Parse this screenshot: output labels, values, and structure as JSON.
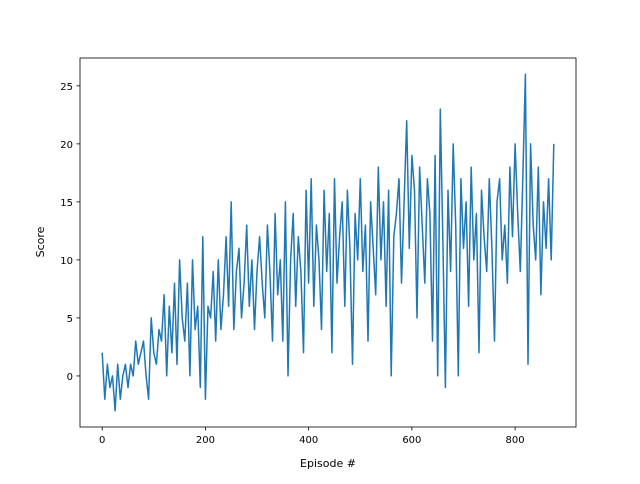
{
  "chart_data": {
    "type": "line",
    "title": "",
    "xlabel": "Episode #",
    "ylabel": "Score",
    "xlim": [
      -43,
      918
    ],
    "ylim": [
      -4.4,
      27.4
    ],
    "xticks": [
      0,
      200,
      400,
      600,
      800
    ],
    "yticks": [
      0,
      5,
      10,
      15,
      20,
      25
    ],
    "grid": false,
    "color": "#1f77b4",
    "note_sampling": "values approximated, sampled every 5 episodes",
    "series": [
      {
        "x_start": 0,
        "x_step": 5,
        "values": [
          2,
          -2,
          1,
          -1,
          0,
          -3,
          1,
          -2,
          0,
          1,
          -1,
          1,
          0,
          3,
          1,
          2,
          3,
          0,
          -2,
          5,
          2,
          1,
          4,
          3,
          7,
          0,
          6,
          2,
          8,
          1,
          10,
          5,
          3,
          8,
          0,
          10,
          4,
          6,
          -1,
          12,
          -2,
          6,
          5,
          9,
          3,
          10,
          4,
          7,
          12,
          6,
          15,
          4,
          9,
          11,
          5,
          8,
          13,
          6,
          10,
          4,
          9,
          12,
          8,
          5,
          13,
          9,
          3,
          14,
          7,
          10,
          3,
          15,
          0,
          10,
          14,
          6,
          12,
          9,
          2,
          16,
          8,
          17,
          6,
          13,
          10,
          4,
          16,
          9,
          14,
          2,
          17,
          8,
          12,
          15,
          6,
          16,
          11,
          1,
          14,
          10,
          17,
          9,
          13,
          3,
          15,
          11,
          7,
          18,
          10,
          15,
          6,
          16,
          0,
          12,
          14,
          17,
          8,
          15,
          22,
          11,
          19,
          16,
          5,
          18,
          13,
          8,
          17,
          14,
          3,
          19,
          0,
          23,
          12,
          -1,
          16,
          9,
          20,
          13,
          0,
          17,
          11,
          15,
          6,
          18,
          10,
          14,
          2,
          16,
          12,
          9,
          17,
          11,
          3,
          15,
          17,
          10,
          13,
          8,
          18,
          12,
          20,
          14,
          9,
          17,
          26,
          1,
          20,
          13,
          10,
          18,
          7,
          15,
          11,
          17,
          10,
          20
        ]
      }
    ]
  }
}
